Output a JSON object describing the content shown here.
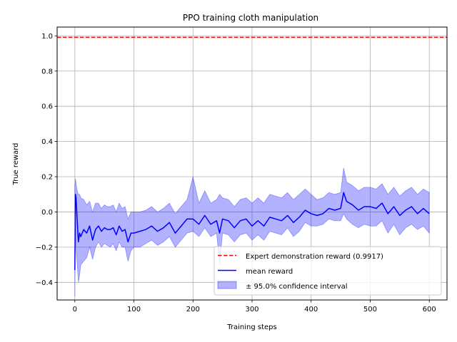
{
  "chart_data": {
    "type": "line",
    "title": "PPO training cloth manipulation",
    "xlabel": "Training steps",
    "ylabel": "True reward",
    "xlim": [
      -30,
      630
    ],
    "ylim": [
      -0.5,
      1.05
    ],
    "xticks": [
      0,
      100,
      200,
      300,
      400,
      500,
      600
    ],
    "xtick_labels": [
      "0",
      "100",
      "200",
      "300",
      "400",
      "500",
      "600"
    ],
    "yticks": [
      -0.4,
      -0.2,
      0.0,
      0.2,
      0.4,
      0.6,
      0.8,
      1.0
    ],
    "ytick_labels": [
      "−0.4",
      "−0.2",
      "0.0",
      "0.2",
      "0.4",
      "0.6",
      "0.8",
      "1.0"
    ],
    "grid": true,
    "legend_position": "lower-right",
    "colors": {
      "mean": "#0000ff",
      "band": "#0000ff",
      "expert": "#ff0000"
    },
    "series": [
      {
        "name": "Expert demonstration reward (0.9917)",
        "kind": "hline",
        "value": 0.9917,
        "style": "dashed"
      },
      {
        "name": "mean reward",
        "kind": "line",
        "x": [
          0,
          1,
          2,
          4,
          6,
          8,
          10,
          15,
          20,
          25,
          30,
          35,
          40,
          45,
          50,
          55,
          60,
          65,
          70,
          75,
          80,
          85,
          90,
          95,
          100,
          110,
          120,
          130,
          140,
          150,
          160,
          170,
          180,
          190,
          200,
          210,
          220,
          230,
          240,
          245,
          250,
          260,
          270,
          280,
          290,
          300,
          310,
          320,
          330,
          340,
          350,
          360,
          370,
          380,
          390,
          400,
          410,
          420,
          430,
          440,
          450,
          455,
          460,
          470,
          480,
          490,
          500,
          510,
          520,
          530,
          540,
          550,
          560,
          570,
          580,
          590,
          600
        ],
        "y": [
          -0.33,
          0.1,
          0.08,
          -0.05,
          -0.17,
          -0.12,
          -0.14,
          -0.1,
          -0.12,
          -0.08,
          -0.16,
          -0.1,
          -0.08,
          -0.11,
          -0.09,
          -0.1,
          -0.1,
          -0.09,
          -0.13,
          -0.08,
          -0.11,
          -0.1,
          -0.17,
          -0.12,
          -0.12,
          -0.11,
          -0.1,
          -0.08,
          -0.11,
          -0.09,
          -0.06,
          -0.12,
          -0.08,
          -0.04,
          -0.04,
          -0.07,
          -0.02,
          -0.07,
          -0.05,
          -0.12,
          -0.04,
          -0.05,
          -0.09,
          -0.05,
          -0.04,
          -0.08,
          -0.05,
          -0.08,
          -0.03,
          -0.04,
          -0.05,
          -0.02,
          -0.06,
          -0.03,
          0.01,
          -0.01,
          -0.02,
          -0.01,
          0.02,
          0.01,
          0.02,
          0.11,
          0.06,
          0.04,
          0.01,
          0.03,
          0.03,
          0.02,
          0.05,
          -0.01,
          0.03,
          -0.02,
          0.01,
          0.03,
          -0.01,
          0.02,
          -0.01
        ]
      },
      {
        "name": "± 95.0% confidence interval",
        "kind": "band",
        "x": [
          0,
          1,
          2,
          4,
          6,
          8,
          10,
          15,
          20,
          25,
          30,
          35,
          40,
          45,
          50,
          55,
          60,
          65,
          70,
          75,
          80,
          85,
          90,
          95,
          100,
          110,
          120,
          130,
          140,
          150,
          160,
          170,
          180,
          190,
          200,
          210,
          220,
          230,
          240,
          245,
          250,
          260,
          270,
          280,
          290,
          300,
          310,
          320,
          330,
          340,
          350,
          360,
          370,
          380,
          390,
          400,
          410,
          420,
          430,
          440,
          450,
          455,
          460,
          470,
          480,
          490,
          500,
          510,
          520,
          530,
          540,
          550,
          560,
          570,
          580,
          590,
          600
        ],
        "lower": [
          -0.48,
          -0.05,
          -0.2,
          -0.3,
          -0.4,
          -0.36,
          -0.3,
          -0.28,
          -0.26,
          -0.2,
          -0.27,
          -0.2,
          -0.17,
          -0.2,
          -0.18,
          -0.19,
          -0.2,
          -0.18,
          -0.22,
          -0.17,
          -0.2,
          -0.2,
          -0.28,
          -0.22,
          -0.2,
          -0.2,
          -0.18,
          -0.16,
          -0.19,
          -0.17,
          -0.14,
          -0.2,
          -0.16,
          -0.12,
          -0.11,
          -0.14,
          -0.09,
          -0.14,
          -0.12,
          -0.3,
          -0.12,
          -0.13,
          -0.17,
          -0.13,
          -0.12,
          -0.16,
          -0.13,
          -0.16,
          -0.11,
          -0.12,
          -0.13,
          -0.09,
          -0.14,
          -0.11,
          -0.06,
          -0.08,
          -0.08,
          -0.07,
          -0.04,
          -0.05,
          -0.05,
          -0.01,
          -0.04,
          -0.07,
          -0.09,
          -0.07,
          -0.08,
          -0.08,
          -0.05,
          -0.12,
          -0.07,
          -0.13,
          -0.09,
          -0.07,
          -0.1,
          -0.08,
          -0.12
        ],
        "upper": [
          0.15,
          0.19,
          0.16,
          0.12,
          0.1,
          0.1,
          0.08,
          0.07,
          0.04,
          0.06,
          0.0,
          0.05,
          0.05,
          0.02,
          0.04,
          0.03,
          0.03,
          0.04,
          0.0,
          0.05,
          0.02,
          0.03,
          -0.04,
          0.0,
          0.0,
          0.0,
          0.01,
          0.03,
          0.0,
          0.02,
          0.05,
          -0.01,
          0.03,
          0.07,
          0.2,
          0.05,
          0.12,
          0.05,
          0.07,
          0.1,
          0.08,
          0.07,
          0.03,
          0.07,
          0.08,
          0.05,
          0.08,
          0.05,
          0.1,
          0.09,
          0.08,
          0.11,
          0.07,
          0.1,
          0.13,
          0.1,
          0.07,
          0.08,
          0.11,
          0.1,
          0.11,
          0.25,
          0.17,
          0.15,
          0.12,
          0.14,
          0.14,
          0.13,
          0.16,
          0.1,
          0.14,
          0.09,
          0.12,
          0.14,
          0.1,
          0.13,
          0.11
        ]
      }
    ]
  }
}
